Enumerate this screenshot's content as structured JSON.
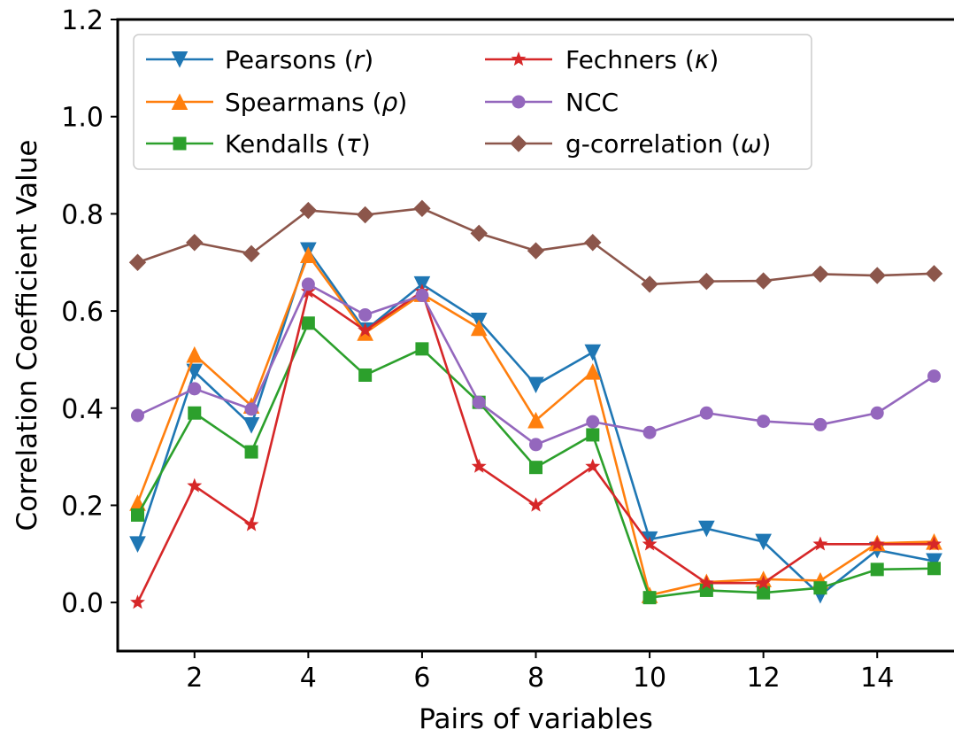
{
  "chart_data": {
    "type": "line",
    "title": "",
    "xlabel": "Pairs of variables",
    "ylabel": "Correlation Coefficient Value",
    "xlim": [
      0.65,
      15.35
    ],
    "ylim": [
      -0.1,
      1.2
    ],
    "xticks": [
      2,
      4,
      6,
      8,
      10,
      12,
      14
    ],
    "xtick_labels": [
      "2",
      "4",
      "6",
      "8",
      "10",
      "12",
      "14"
    ],
    "yticks": [
      0.0,
      0.2,
      0.4,
      0.6,
      0.8,
      1.0,
      1.2
    ],
    "ytick_labels": [
      "0.0",
      "0.2",
      "0.4",
      "0.6",
      "0.8",
      "1.0",
      "1.2"
    ],
    "grid": false,
    "legend_position": "top-left",
    "legend_columns": 2,
    "x": [
      1,
      2,
      3,
      4,
      5,
      6,
      7,
      8,
      9,
      10,
      11,
      12,
      13,
      14,
      15
    ],
    "series": [
      {
        "name": "Pearsons (r)",
        "name_base": "Pearsons",
        "name_symbol": "r",
        "color": "#1f77b4",
        "marker": "triangle-down",
        "values": [
          0.12,
          0.475,
          0.365,
          0.725,
          0.56,
          0.655,
          0.58,
          0.448,
          0.515,
          0.13,
          0.152,
          0.125,
          0.015,
          0.108,
          0.085
        ]
      },
      {
        "name": "Spearmans (ρ)",
        "name_base": "Spearmans",
        "name_symbol": "ρ",
        "color": "#ff7f0e",
        "marker": "triangle-up",
        "values": [
          0.205,
          0.51,
          0.405,
          0.715,
          0.555,
          0.635,
          0.565,
          0.375,
          0.475,
          0.015,
          0.042,
          0.048,
          0.045,
          0.122,
          0.125
        ]
      },
      {
        "name": "Kendalls (τ)",
        "name_base": "Kendalls",
        "name_symbol": "τ",
        "color": "#2ca02c",
        "marker": "square",
        "values": [
          0.18,
          0.39,
          0.31,
          0.575,
          0.468,
          0.522,
          0.412,
          0.278,
          0.345,
          0.01,
          0.025,
          0.02,
          0.03,
          0.068,
          0.07
        ]
      },
      {
        "name": "Fechners (κ)",
        "name_base": "Fechners",
        "name_symbol": "κ",
        "color": "#d62728",
        "marker": "star",
        "values": [
          0.0,
          0.24,
          0.16,
          0.64,
          0.56,
          0.64,
          0.28,
          0.2,
          0.28,
          0.12,
          0.04,
          0.04,
          0.12,
          0.12,
          0.12
        ]
      },
      {
        "name": "NCC",
        "name_base": "NCC",
        "name_symbol": "",
        "color": "#9467bd",
        "marker": "circle",
        "values": [
          0.385,
          0.44,
          0.398,
          0.655,
          0.592,
          0.632,
          0.412,
          0.325,
          0.372,
          0.35,
          0.39,
          0.373,
          0.366,
          0.39,
          0.466
        ]
      },
      {
        "name": "g-correlation (ω)",
        "name_base": "g-correlation",
        "name_symbol": "ω",
        "color": "#8c564b",
        "marker": "diamond",
        "values": [
          0.7,
          0.741,
          0.718,
          0.807,
          0.798,
          0.811,
          0.76,
          0.724,
          0.741,
          0.655,
          0.661,
          0.662,
          0.676,
          0.673,
          0.677
        ]
      }
    ]
  }
}
